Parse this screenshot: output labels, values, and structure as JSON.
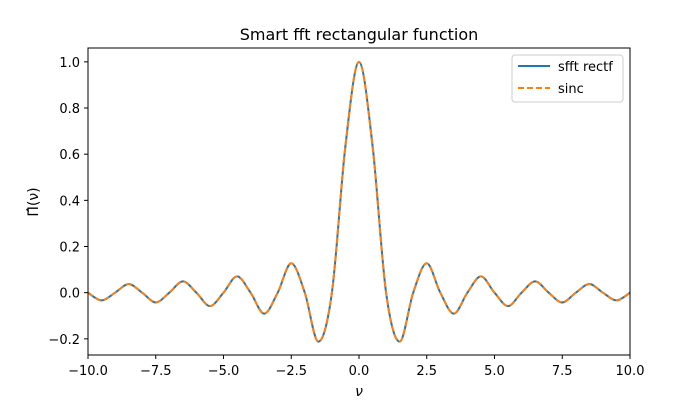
{
  "chart_data": {
    "type": "line",
    "title": "Smart fft rectangular function",
    "xlabel": "ν",
    "ylabel": "Π̂(ν)",
    "xlim": [
      -10,
      10
    ],
    "ylim": [
      -0.27,
      1.06
    ],
    "xticks": [
      -10,
      -7.5,
      -5,
      -2.5,
      0,
      2.5,
      5,
      7.5,
      10
    ],
    "xtick_labels": [
      "−10.0",
      "−7.5",
      "−5.0",
      "−2.5",
      "0.0",
      "2.5",
      "5.0",
      "7.5",
      "10.0"
    ],
    "yticks": [
      -0.2,
      0.0,
      0.2,
      0.4,
      0.6,
      0.8,
      1.0
    ],
    "ytick_labels": [
      "−0.2",
      "0.0",
      "0.2",
      "0.4",
      "0.6",
      "0.8",
      "1.0"
    ],
    "grid": false,
    "legend_position": "top-right",
    "x": [
      -10,
      -9.5,
      -9,
      -8.5,
      -8,
      -7.5,
      -7,
      -6.5,
      -6,
      -5.5,
      -5,
      -4.5,
      -4,
      -3.5,
      -3,
      -2.5,
      -2,
      -1.5,
      -1,
      -0.5,
      0,
      0.5,
      1,
      1.5,
      2,
      2.5,
      3,
      3.5,
      4,
      4.5,
      5,
      5.5,
      6,
      6.5,
      7,
      7.5,
      8,
      8.5,
      9,
      9.5,
      10
    ],
    "series": [
      {
        "name": "sfft rectf",
        "color": "#1f77b4",
        "style": "solid",
        "values": [
          0.0,
          -0.0335,
          0.0,
          0.0374,
          0.0,
          -0.0424,
          0.0,
          0.049,
          0.0,
          -0.0579,
          0.0,
          0.0707,
          0.0,
          -0.0909,
          0.0,
          0.1273,
          0.0,
          -0.2122,
          0.0,
          0.6366,
          1.0,
          0.6366,
          0.0,
          -0.2122,
          0.0,
          0.1273,
          0.0,
          -0.0909,
          0.0,
          0.0707,
          0.0,
          -0.0579,
          0.0,
          0.049,
          0.0,
          -0.0424,
          0.0,
          0.0374,
          0.0,
          -0.0335,
          0.0
        ]
      },
      {
        "name": "sinc",
        "color": "#ff7f0e",
        "style": "dashed",
        "values": [
          0.0,
          -0.0335,
          0.0,
          0.0374,
          0.0,
          -0.0424,
          0.0,
          0.049,
          0.0,
          -0.0579,
          0.0,
          0.0707,
          0.0,
          -0.0909,
          0.0,
          0.1273,
          0.0,
          -0.2122,
          0.0,
          0.6366,
          1.0,
          0.6366,
          0.0,
          -0.2122,
          0.0,
          0.1273,
          0.0,
          -0.0909,
          0.0,
          0.0707,
          0.0,
          -0.0579,
          0.0,
          0.049,
          0.0,
          -0.0424,
          0.0,
          0.0374,
          0.0,
          -0.0335,
          0.0
        ]
      }
    ]
  }
}
